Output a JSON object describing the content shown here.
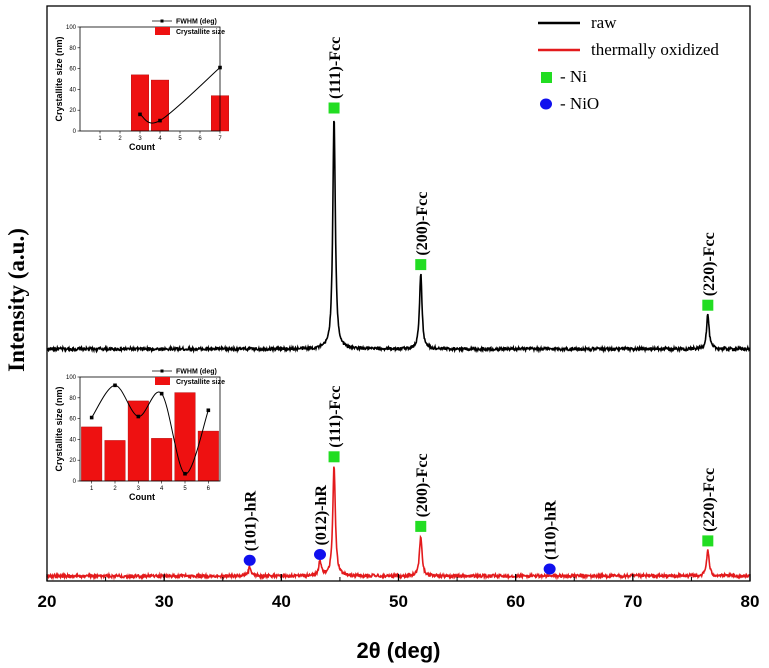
{
  "chart_data": {
    "type": "line",
    "xlabel": "2θ (deg)",
    "ylabel": "Intensity (a.u.)",
    "xlim": [
      20,
      80
    ],
    "xticks": [
      20,
      30,
      40,
      50,
      60,
      70,
      80
    ],
    "legend": {
      "placement": "top-right",
      "items": [
        {
          "label": "raw",
          "kind": "line",
          "color": "#000000"
        },
        {
          "label": "thermally oxidized",
          "kind": "line",
          "color": "#e31a1c"
        },
        {
          "label": "- Ni",
          "kind": "square",
          "color": "#22dd22"
        },
        {
          "label": "- NiO",
          "kind": "circle",
          "color": "#1010ee"
        }
      ]
    },
    "series": [
      {
        "name": "raw",
        "color": "#000000",
        "baseline": 0.0,
        "peaks": [
          {
            "x": 44.5,
            "height": 0.8,
            "label": "(111)-Fcc",
            "marker": "Ni"
          },
          {
            "x": 51.9,
            "height": 0.26,
            "label": "(200)-Fcc",
            "marker": "Ni"
          },
          {
            "x": 76.4,
            "height": 0.12,
            "label": "(220)-Fcc",
            "marker": "Ni"
          }
        ]
      },
      {
        "name": "thermally oxidized",
        "color": "#e31a1c",
        "baseline": 0.0,
        "peaks": [
          {
            "x": 37.3,
            "height": 0.03,
            "label": "(101)-hR",
            "marker": "NiO"
          },
          {
            "x": 43.3,
            "height": 0.05,
            "label": "(012)-hR",
            "marker": "NiO"
          },
          {
            "x": 44.5,
            "height": 0.38,
            "label": "(111)-Fcc",
            "marker": "Ni"
          },
          {
            "x": 51.9,
            "height": 0.14,
            "label": "(200)-Fcc",
            "marker": "Ni"
          },
          {
            "x": 62.9,
            "height": 0.0,
            "label": "(110)-hR",
            "marker": "NiO"
          },
          {
            "x": 76.4,
            "height": 0.09,
            "label": "(220)-Fcc",
            "marker": "Ni"
          }
        ]
      }
    ],
    "insets": [
      {
        "name": "raw inset",
        "ylabel": "Crystallite size (nm)",
        "xlabel": "Count",
        "xlim": [
          0,
          7
        ],
        "ylim": [
          0,
          100
        ],
        "xticks": [
          1,
          2,
          3,
          4,
          5,
          6,
          7
        ],
        "yticks": [
          0,
          20,
          40,
          60,
          80,
          100
        ],
        "legend": [
          "FWHM (deg)",
          "Crystallite size"
        ],
        "bars": [
          {
            "x": 3,
            "value": 54
          },
          {
            "x": 4,
            "value": 49
          },
          {
            "x": 7,
            "value": 34
          }
        ],
        "fwhm": [
          {
            "x": 3,
            "value": 16
          },
          {
            "x": 4,
            "value": 10
          },
          {
            "x": 7,
            "value": 61
          }
        ]
      },
      {
        "name": "oxidized inset",
        "ylabel": "Crystallite size (nm)",
        "xlabel": "Count",
        "xlim": [
          0.5,
          6.5
        ],
        "ylim": [
          0,
          100
        ],
        "xticks": [
          1,
          2,
          3,
          4,
          5,
          6
        ],
        "yticks": [
          0,
          20,
          40,
          60,
          80,
          100
        ],
        "legend": [
          "FWHM (deg)",
          "Crystallite size"
        ],
        "bars": [
          {
            "x": 1,
            "value": 52
          },
          {
            "x": 2,
            "value": 39
          },
          {
            "x": 3,
            "value": 77
          },
          {
            "x": 4,
            "value": 41
          },
          {
            "x": 5,
            "value": 85
          },
          {
            "x": 6,
            "value": 48
          }
        ],
        "fwhm": [
          {
            "x": 1,
            "value": 61
          },
          {
            "x": 2,
            "value": 92
          },
          {
            "x": 3,
            "value": 62
          },
          {
            "x": 4,
            "value": 84
          },
          {
            "x": 5,
            "value": 7
          },
          {
            "x": 6,
            "value": 68
          }
        ]
      }
    ]
  }
}
